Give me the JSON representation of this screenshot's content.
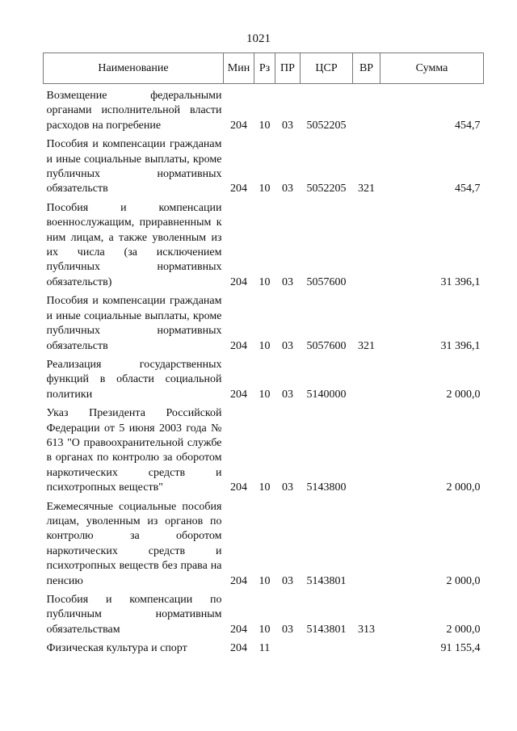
{
  "page_number": "1021",
  "headers": [
    "Наименование",
    "Мин",
    "Рз",
    "ПР",
    "ЦСР",
    "ВР",
    "Сумма"
  ],
  "rows": [
    {
      "name": "Возмещение федеральными органами исполнительной власти расходов на погребение",
      "min": "204",
      "rz": "10",
      "pr": "03",
      "csr": "5052205",
      "vr": "",
      "sum": "454,7"
    },
    {
      "name": "Пособия и компенсации гражданам и иные социальные выплаты, кроме публичных нормативных обязательств",
      "min": "204",
      "rz": "10",
      "pr": "03",
      "csr": "5052205",
      "vr": "321",
      "sum": "454,7"
    },
    {
      "name": "Пособия и компенсации военнослужащим, приравненным к ним лицам, а также уволенным из их числа (за исключением публичных нормативных обязательств)",
      "min": "204",
      "rz": "10",
      "pr": "03",
      "csr": "5057600",
      "vr": "",
      "sum": "31 396,1"
    },
    {
      "name": "Пособия и компенсации гражданам и иные социальные выплаты, кроме публичных нормативных обязательств",
      "min": "204",
      "rz": "10",
      "pr": "03",
      "csr": "5057600",
      "vr": "321",
      "sum": "31 396,1"
    },
    {
      "name": "Реализация государственных функций в области социальной политики",
      "min": "204",
      "rz": "10",
      "pr": "03",
      "csr": "5140000",
      "vr": "",
      "sum": "2 000,0"
    },
    {
      "name": "Указ Президента Российской Федерации от 5 июня 2003 года № 613 \"О правоохранительной службе в органах по контролю за оборотом наркотических средств и психотропных веществ\"",
      "min": "204",
      "rz": "10",
      "pr": "03",
      "csr": "5143800",
      "vr": "",
      "sum": "2 000,0"
    },
    {
      "name": "Ежемесячные социальные пособия лицам, уволенным из органов по контролю за оборотом наркотических средств и психотропных веществ без права на пенсию",
      "min": "204",
      "rz": "10",
      "pr": "03",
      "csr": "5143801",
      "vr": "",
      "sum": "2 000,0"
    },
    {
      "name": "Пособия и компенсации по публичным нормативным обязательствам",
      "min": "204",
      "rz": "10",
      "pr": "03",
      "csr": "5143801",
      "vr": "313",
      "sum": "2 000,0"
    },
    {
      "name": "Физическая культура и спорт",
      "min": "204",
      "rz": "11",
      "pr": "",
      "csr": "",
      "vr": "",
      "sum": "91 155,4"
    }
  ]
}
